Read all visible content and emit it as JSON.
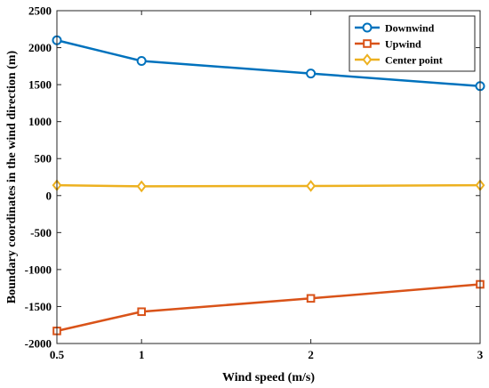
{
  "chart_data": {
    "type": "line",
    "title": "",
    "xlabel": "Wind speed (m/s)",
    "ylabel": "Boundary coordinates in the wind direction (m)",
    "x": [
      0.5,
      1,
      2,
      3
    ],
    "xlim": [
      0.5,
      3
    ],
    "xticks": [
      0.5,
      1,
      2,
      3
    ],
    "xtick_labels": [
      "0.5",
      "1",
      "2",
      "3"
    ],
    "ylim": [
      -2000,
      2500
    ],
    "yticks": [
      -2000,
      -1500,
      -1000,
      -500,
      0,
      500,
      1000,
      1500,
      2000,
      2500
    ],
    "ytick_labels": [
      "-2000",
      "-1500",
      "-1000",
      "-500",
      "0",
      "500",
      "1000",
      "1500",
      "2000",
      "2500"
    ],
    "grid": false,
    "legend_position": "top-right",
    "series": [
      {
        "name": "Downwind",
        "values": [
          2100,
          1820,
          1650,
          1480
        ],
        "color": "#0072BD",
        "marker": "circle"
      },
      {
        "name": "Upwind",
        "values": [
          -1830,
          -1570,
          -1390,
          -1200
        ],
        "color": "#D95319",
        "marker": "square"
      },
      {
        "name": "Center point",
        "values": [
          140,
          125,
          130,
          140
        ],
        "color": "#EDB120",
        "marker": "diamond"
      }
    ]
  }
}
